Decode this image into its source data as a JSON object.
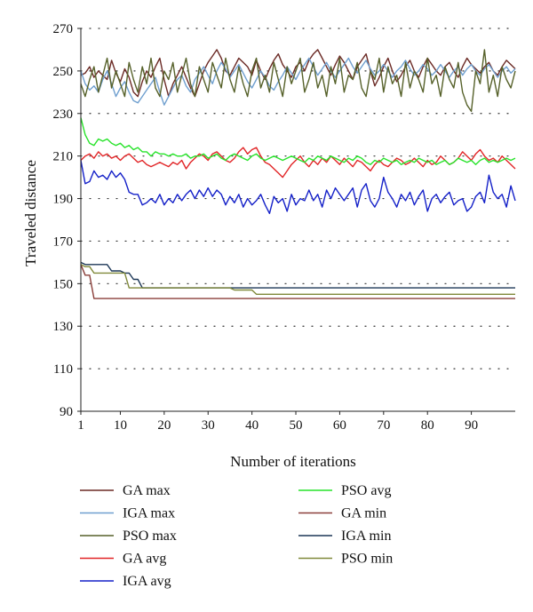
{
  "chart_data": {
    "type": "line",
    "xlabel": "Number of iterations",
    "ylabel": "Traveled distance",
    "xlim": [
      1,
      100
    ],
    "ylim": [
      90,
      270
    ],
    "x_ticks": [
      1,
      10,
      20,
      30,
      40,
      50,
      60,
      70,
      80,
      90
    ],
    "y_ticks": [
      90,
      110,
      130,
      150,
      170,
      190,
      210,
      230,
      250,
      270
    ],
    "grid": "horizontal-dotted",
    "legend_position": "bottom",
    "series": [
      {
        "name": "GA max",
        "color": "#6b2a25",
        "values": [
          248,
          249,
          252,
          247,
          250,
          248,
          246,
          255,
          249,
          245,
          251,
          247,
          240,
          238,
          245,
          250,
          247,
          252,
          256,
          246,
          238,
          244,
          248,
          252,
          247,
          242,
          238,
          244,
          250,
          254,
          257,
          260,
          256,
          250,
          248,
          252,
          256,
          254,
          252,
          248,
          255,
          250,
          246,
          251,
          255,
          258,
          253,
          250,
          247,
          252,
          254,
          250,
          255,
          258,
          260,
          256,
          252,
          248,
          253,
          257,
          254,
          250,
          246,
          252,
          255,
          258,
          250,
          243,
          247,
          252,
          256,
          250,
          245,
          248,
          252,
          255,
          250,
          247,
          252,
          256,
          253,
          250,
          248,
          252,
          254,
          250,
          247,
          252,
          256,
          253,
          251,
          249,
          252,
          254,
          250,
          248,
          252,
          255,
          253,
          251
        ]
      },
      {
        "name": "IGA max",
        "color": "#6f9fcf",
        "values": [
          250,
          244,
          241,
          243,
          240,
          246,
          250,
          244,
          238,
          242,
          245,
          240,
          236,
          235,
          238,
          241,
          244,
          247,
          240,
          234,
          238,
          242,
          246,
          248,
          243,
          240,
          246,
          249,
          252,
          248,
          244,
          250,
          254,
          251,
          247,
          250,
          253,
          249,
          245,
          242,
          246,
          250,
          247,
          243,
          241,
          245,
          248,
          252,
          249,
          246,
          250,
          253,
          256,
          252,
          248,
          251,
          254,
          250,
          247,
          250,
          253,
          256,
          252,
          249,
          252,
          255,
          251,
          248,
          250,
          253,
          250,
          247,
          250,
          252,
          255,
          251,
          248,
          250,
          253,
          251,
          248,
          250,
          253,
          250,
          247,
          250,
          252,
          248,
          251,
          253,
          250,
          248,
          251,
          253,
          250,
          247,
          250,
          252,
          249,
          251
        ]
      },
      {
        "name": "PSO max",
        "color": "#56612a",
        "values": [
          244,
          238,
          246,
          252,
          240,
          248,
          256,
          242,
          250,
          244,
          238,
          254,
          246,
          240,
          252,
          244,
          256,
          242,
          238,
          250,
          246,
          254,
          240,
          248,
          256,
          244,
          238,
          252,
          246,
          240,
          254,
          248,
          242,
          256,
          246,
          240,
          252,
          244,
          238,
          250,
          256,
          242,
          248,
          240,
          254,
          246,
          238,
          252,
          244,
          250,
          256,
          240,
          246,
          254,
          242,
          248,
          238,
          252,
          244,
          256,
          240,
          248,
          246,
          254,
          242,
          238,
          250,
          246,
          256,
          240,
          252,
          244,
          248,
          238,
          254,
          242,
          250,
          246,
          240,
          256,
          244,
          248,
          238,
          252,
          246,
          242,
          254,
          240,
          234,
          231,
          250,
          244,
          260,
          240,
          248,
          238,
          252,
          246,
          242,
          250
        ]
      },
      {
        "name": "GA avg",
        "color": "#e12527",
        "values": [
          208,
          210,
          211,
          209,
          212,
          210,
          211,
          209,
          210,
          208,
          210,
          211,
          209,
          207,
          208,
          206,
          205,
          206,
          207,
          206,
          205,
          207,
          206,
          208,
          204,
          207,
          209,
          211,
          210,
          208,
          211,
          212,
          210,
          208,
          207,
          209,
          212,
          214,
          211,
          213,
          214,
          210,
          207,
          206,
          204,
          202,
          200,
          203,
          206,
          208,
          210,
          207,
          205,
          208,
          206,
          209,
          207,
          210,
          208,
          206,
          209,
          207,
          205,
          208,
          207,
          205,
          203,
          206,
          208,
          206,
          205,
          207,
          209,
          208,
          206,
          207,
          209,
          207,
          205,
          208,
          206,
          207,
          210,
          208,
          206,
          207,
          209,
          212,
          210,
          208,
          211,
          213,
          210,
          208,
          209,
          207,
          210,
          208,
          206,
          204
        ]
      },
      {
        "name": "IGA avg",
        "color": "#1420c8",
        "values": [
          208,
          197,
          198,
          203,
          200,
          201,
          199,
          203,
          200,
          202,
          199,
          193,
          192,
          192,
          187,
          188,
          190,
          188,
          192,
          187,
          190,
          188,
          192,
          189,
          192,
          194,
          190,
          194,
          191,
          195,
          191,
          194,
          192,
          187,
          191,
          188,
          192,
          186,
          190,
          187,
          189,
          192,
          187,
          183,
          191,
          188,
          190,
          184,
          192,
          187,
          190,
          189,
          194,
          189,
          192,
          186,
          194,
          190,
          195,
          192,
          189,
          192,
          195,
          186,
          194,
          197,
          189,
          186,
          190,
          200,
          193,
          190,
          186,
          192,
          189,
          193,
          187,
          191,
          194,
          184,
          190,
          192,
          188,
          191,
          193,
          187,
          189,
          190,
          184,
          186,
          191,
          193,
          188,
          201,
          193,
          190,
          192,
          186,
          196,
          189
        ]
      },
      {
        "name": "PSO avg",
        "color": "#27e32a",
        "values": [
          228,
          220,
          216,
          215,
          218,
          217,
          218,
          216,
          215,
          216,
          214,
          215,
          213,
          214,
          212,
          212,
          210,
          212,
          211,
          211,
          210,
          211,
          210,
          210,
          211,
          209,
          210,
          210,
          211,
          209,
          210,
          211,
          209,
          208,
          210,
          211,
          210,
          209,
          208,
          210,
          211,
          209,
          208,
          209,
          210,
          209,
          208,
          209,
          210,
          209,
          208,
          207,
          209,
          208,
          210,
          209,
          208,
          210,
          209,
          208,
          207,
          209,
          208,
          210,
          209,
          207,
          206,
          208,
          207,
          209,
          208,
          207,
          208,
          206,
          207,
          208,
          207,
          209,
          208,
          207,
          208,
          206,
          207,
          208,
          206,
          207,
          209,
          208,
          207,
          208,
          206,
          208,
          209,
          207,
          208,
          207,
          208,
          209,
          208,
          209
        ]
      },
      {
        "name": "GA min",
        "color": "#8b3f3a",
        "values": [
          159,
          154,
          154,
          143,
          143,
          143,
          143,
          143,
          143,
          143,
          143,
          143,
          143,
          143,
          143,
          143,
          143,
          143,
          143,
          143,
          143,
          143,
          143,
          143,
          143,
          143,
          143,
          143,
          143,
          143,
          143,
          143,
          143,
          143,
          143,
          143,
          143,
          143,
          143,
          143,
          143,
          143,
          143,
          143,
          143,
          143,
          143,
          143,
          143,
          143,
          143,
          143,
          143,
          143,
          143,
          143,
          143,
          143,
          143,
          143,
          143,
          143,
          143,
          143,
          143,
          143,
          143,
          143,
          143,
          143,
          143,
          143,
          143,
          143,
          143,
          143,
          143,
          143,
          143,
          143,
          143,
          143,
          143,
          143,
          143,
          143,
          143,
          143,
          143,
          143,
          143,
          143,
          143,
          143,
          143,
          143,
          143,
          143,
          143,
          143
        ]
      },
      {
        "name": "IGA min",
        "color": "#1c3757",
        "values": [
          160,
          159,
          159,
          159,
          159,
          159,
          159,
          156,
          156,
          156,
          155,
          155,
          152,
          152,
          148,
          148,
          148,
          148,
          148,
          148,
          148,
          148,
          148,
          148,
          148,
          148,
          148,
          148,
          148,
          148,
          148,
          148,
          148,
          148,
          148,
          148,
          148,
          148,
          148,
          148,
          148,
          148,
          148,
          148,
          148,
          148,
          148,
          148,
          148,
          148,
          148,
          148,
          148,
          148,
          148,
          148,
          148,
          148,
          148,
          148,
          148,
          148,
          148,
          148,
          148,
          148,
          148,
          148,
          148,
          148,
          148,
          148,
          148,
          148,
          148,
          148,
          148,
          148,
          148,
          148,
          148,
          148,
          148,
          148,
          148,
          148,
          148,
          148,
          148,
          148,
          148,
          148,
          148,
          148,
          148,
          148,
          148,
          148,
          148,
          148
        ]
      },
      {
        "name": "PSO min",
        "color": "#80893a",
        "values": [
          159,
          158,
          158,
          155,
          155,
          155,
          155,
          155,
          155,
          155,
          155,
          148,
          148,
          148,
          148,
          148,
          148,
          148,
          148,
          148,
          148,
          148,
          148,
          148,
          148,
          148,
          148,
          148,
          148,
          148,
          148,
          148,
          148,
          148,
          148,
          147,
          147,
          147,
          147,
          147,
          145,
          145,
          145,
          145,
          145,
          145,
          145,
          145,
          145,
          145,
          145,
          145,
          145,
          145,
          145,
          145,
          145,
          145,
          145,
          145,
          145,
          145,
          145,
          145,
          145,
          145,
          145,
          145,
          145,
          145,
          145,
          145,
          145,
          145,
          145,
          145,
          145,
          145,
          145,
          145,
          145,
          145,
          145,
          145,
          145,
          145,
          145,
          145,
          145,
          145,
          145,
          145,
          145,
          145,
          145,
          145,
          145,
          145,
          145,
          145
        ]
      }
    ]
  }
}
